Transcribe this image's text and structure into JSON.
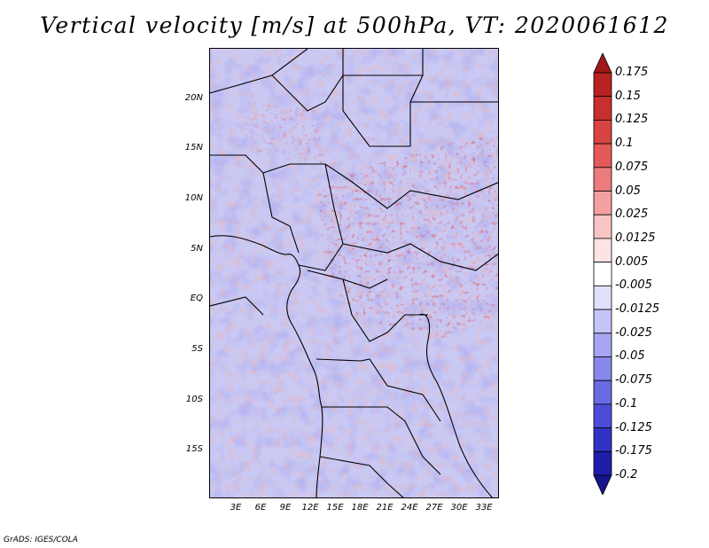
{
  "title": "Vertical velocity [m/s] at 500hPa, VT: 2020061612",
  "credit": "GrADS: IGES/COLA",
  "map": {
    "lon_range": [
      0,
      35
    ],
    "lat_range": [
      -20,
      25
    ],
    "lat_ticks": [
      "20N",
      "15N",
      "10N",
      "5N",
      "EQ",
      "5S",
      "10S",
      "15S"
    ],
    "lat_values": [
      20,
      15,
      10,
      5,
      0,
      -5,
      -10,
      -15
    ],
    "lon_ticks": [
      "3E",
      "6E",
      "9E",
      "12E",
      "15E",
      "18E",
      "21E",
      "24E",
      "27E",
      "30E",
      "33E"
    ],
    "lon_values": [
      3,
      6,
      9,
      12,
      15,
      18,
      21,
      24,
      27,
      30,
      33
    ]
  },
  "colorbar": {
    "labels": [
      "0.175",
      "0.15",
      "0.125",
      "0.1",
      "0.075",
      "0.05",
      "0.025",
      "0.0125",
      "0.005",
      "-0.005",
      "-0.0125",
      "-0.025",
      "-0.05",
      "-0.075",
      "-0.1",
      "-0.125",
      "-0.175",
      "-0.2"
    ],
    "colors": [
      "#a01818",
      "#b82222",
      "#c83030",
      "#d84444",
      "#e45a5a",
      "#ec7c7c",
      "#f4a0a0",
      "#f8c4c4",
      "#fce4e4",
      "#ffffff",
      "#e0e0fc",
      "#c4c4f8",
      "#a6a6f2",
      "#8888ec",
      "#6a6ae2",
      "#4c4cd8",
      "#3232c4",
      "#1e1ea8",
      "#14148c"
    ]
  }
}
